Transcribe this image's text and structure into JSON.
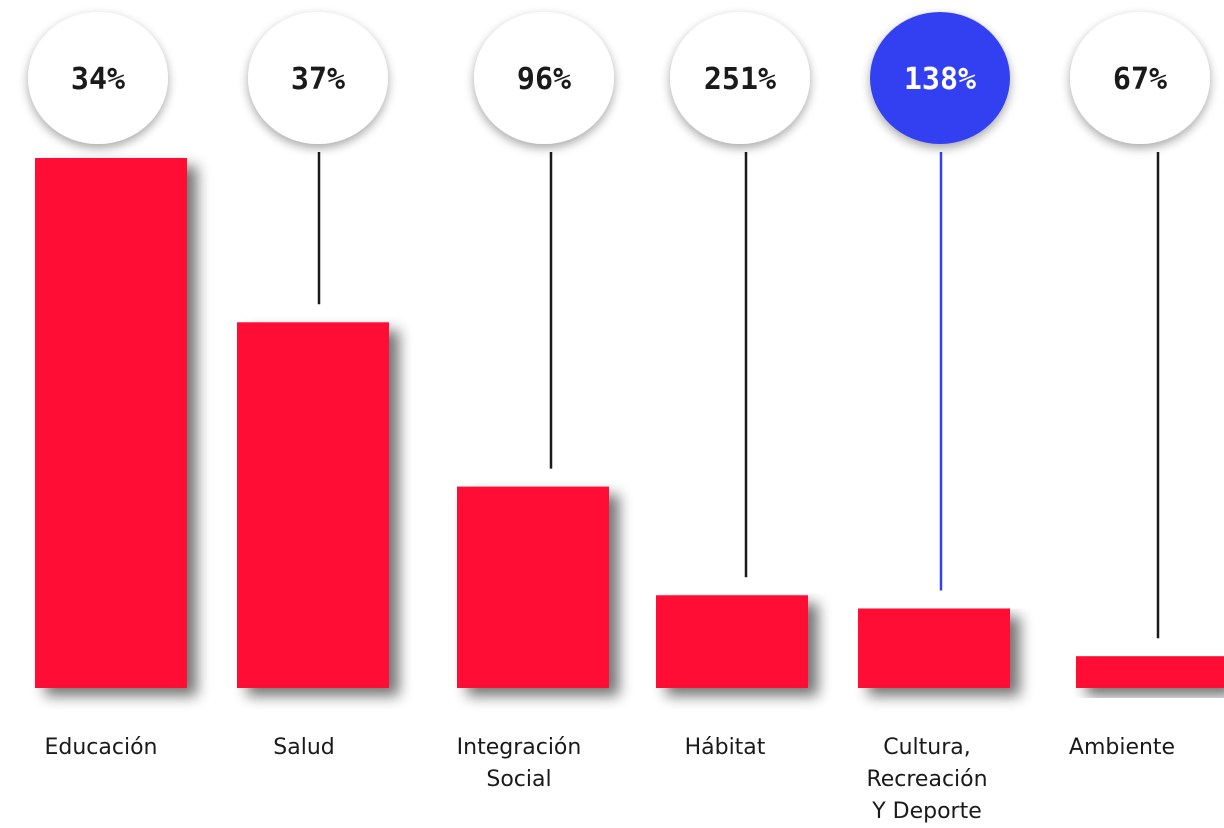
{
  "chart_data": {
    "type": "bar",
    "categories": [
      "Educación",
      "Salud",
      "Integración Social",
      "Hábitat",
      "Cultura, Recreación Y Deporte",
      "Ambiente"
    ],
    "category_label_lines": [
      [
        "Educación"
      ],
      [
        "Salud"
      ],
      [
        "Integración",
        "Social"
      ],
      [
        "Hábitat"
      ],
      [
        "Cultura,",
        "Recreación",
        "Y Deporte"
      ],
      [
        "Ambiente"
      ]
    ],
    "values": [
      100,
      69,
      38,
      17.5,
      15,
      6
    ],
    "value_scale": "relative",
    "badges": [
      "34%",
      "37%",
      "96%",
      "251%",
      "138%",
      "67%"
    ],
    "highlight_index": 4,
    "colors": {
      "bar": "#ff0a35",
      "highlight": "#3241f2",
      "badge_fill": "#ffffff",
      "leader": "#1a1a1a",
      "shadow": "#777777"
    },
    "grid": false,
    "legend": "none"
  }
}
